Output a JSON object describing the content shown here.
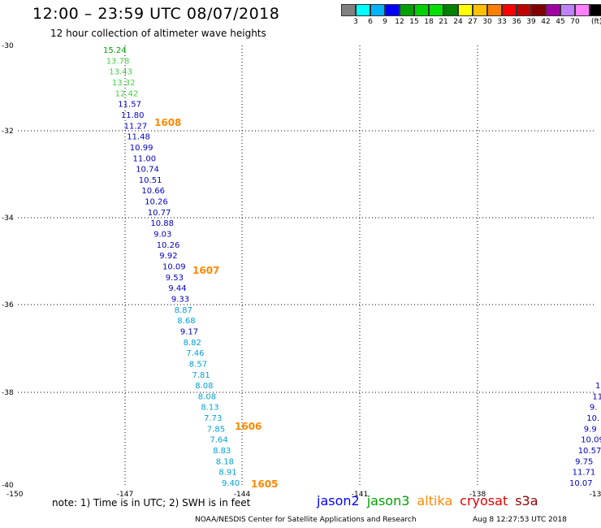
{
  "header": {
    "title": "12:00 – 23:59 UTC 08/07/2018",
    "subtitle": "12 hour collection of altimeter wave heights"
  },
  "scale": {
    "unit": "(ft)",
    "bins": [
      {
        "label": "",
        "color": "#808080"
      },
      {
        "label": "3",
        "color": "#00ffff"
      },
      {
        "label": "6",
        "color": "#00b4ff"
      },
      {
        "label": "9",
        "color": "#0000ff"
      },
      {
        "label": "12",
        "color": "#00a000"
      },
      {
        "label": "15",
        "color": "#00d000"
      },
      {
        "label": "18",
        "color": "#00e000"
      },
      {
        "label": "21",
        "color": "#008000"
      },
      {
        "label": "24",
        "color": "#ffff00"
      },
      {
        "label": "27",
        "color": "#ffc000"
      },
      {
        "label": "30",
        "color": "#ff8000"
      },
      {
        "label": "33",
        "color": "#ff0000"
      },
      {
        "label": "36",
        "color": "#c00000"
      },
      {
        "label": "39",
        "color": "#800000"
      },
      {
        "label": "42",
        "color": "#a000a0"
      },
      {
        "label": "45",
        "color": "#c080ff"
      },
      {
        "label": "70",
        "color": "#ff80ff"
      },
      {
        "label": "",
        "color": "#000000"
      }
    ]
  },
  "axes": {
    "lon_ticks": [
      "-150",
      "-147",
      "-144",
      "-141",
      "-138",
      "-13"
    ],
    "lat_ticks": [
      "-30",
      "-32",
      "-34",
      "-36",
      "-38",
      "-40"
    ]
  },
  "colors": {
    "dark_blue": "#0000c8",
    "light_blue": "#00a0dc",
    "light_green": "#40d040",
    "green": "#00a000",
    "orange": "#ff8800"
  },
  "track_west": [
    {
      "v": "15.24",
      "c": "green"
    },
    {
      "v": "13.78",
      "c": "light_green"
    },
    {
      "v": "13.43",
      "c": "light_green"
    },
    {
      "v": "13.32",
      "c": "light_green"
    },
    {
      "v": "12.42",
      "c": "light_green"
    },
    {
      "v": "11.57",
      "c": "dark_blue"
    },
    {
      "v": "11.80",
      "c": "dark_blue"
    },
    {
      "v": "11.27",
      "c": "dark_blue"
    },
    {
      "v": "11.48",
      "c": "dark_blue"
    },
    {
      "v": "10.99",
      "c": "dark_blue"
    },
    {
      "v": "11.00",
      "c": "dark_blue"
    },
    {
      "v": "10.74",
      "c": "dark_blue"
    },
    {
      "v": "10.51",
      "c": "dark_blue"
    },
    {
      "v": "10.66",
      "c": "dark_blue"
    },
    {
      "v": "10.26",
      "c": "dark_blue"
    },
    {
      "v": "10.77",
      "c": "dark_blue"
    },
    {
      "v": "10.88",
      "c": "dark_blue"
    },
    {
      "v": "9.03",
      "c": "dark_blue"
    },
    {
      "v": "10.26",
      "c": "dark_blue"
    },
    {
      "v": "9.92",
      "c": "dark_blue"
    },
    {
      "v": "10.09",
      "c": "dark_blue"
    },
    {
      "v": "9.53",
      "c": "dark_blue"
    },
    {
      "v": "9.44",
      "c": "dark_blue"
    },
    {
      "v": "9.33",
      "c": "dark_blue"
    },
    {
      "v": "8.87",
      "c": "light_blue"
    },
    {
      "v": "8.68",
      "c": "light_blue"
    },
    {
      "v": "9.17",
      "c": "dark_blue"
    },
    {
      "v": "8.82",
      "c": "light_blue"
    },
    {
      "v": "7.46",
      "c": "light_blue"
    },
    {
      "v": "8.57",
      "c": "light_blue"
    },
    {
      "v": "7.81",
      "c": "light_blue"
    },
    {
      "v": "8.08",
      "c": "light_blue"
    },
    {
      "v": "8.08",
      "c": "light_blue"
    },
    {
      "v": "8.13",
      "c": "light_blue"
    },
    {
      "v": "7.73",
      "c": "light_blue"
    },
    {
      "v": "7.85",
      "c": "light_blue"
    },
    {
      "v": "7.64",
      "c": "light_blue"
    },
    {
      "v": "8.83",
      "c": "light_blue"
    },
    {
      "v": "8.18",
      "c": "light_blue"
    },
    {
      "v": "8.91",
      "c": "light_blue"
    },
    {
      "v": "9.40",
      "c": "light_blue"
    }
  ],
  "track_east": [
    {
      "v": "1",
      "c": "dark_blue"
    },
    {
      "v": "11",
      "c": "dark_blue"
    },
    {
      "v": "9.",
      "c": "dark_blue"
    },
    {
      "v": "10.",
      "c": "dark_blue"
    },
    {
      "v": "9.9",
      "c": "dark_blue"
    },
    {
      "v": "10.09",
      "c": "dark_blue"
    },
    {
      "v": "10.57",
      "c": "dark_blue"
    },
    {
      "v": "9.75",
      "c": "dark_blue"
    },
    {
      "v": "11.71",
      "c": "dark_blue"
    },
    {
      "v": "10.07",
      "c": "dark_blue"
    }
  ],
  "time_labels": [
    "1608",
    "1607",
    "1606",
    "1605"
  ],
  "footer": {
    "note": "note:  1) Time is in UTC; 2) SWH is in feet",
    "satellites": [
      {
        "name": "jason2",
        "color": "#0000ff"
      },
      {
        "name": "jason3",
        "color": "#00a000"
      },
      {
        "name": "altika",
        "color": "#ff8800"
      },
      {
        "name": "cryosat",
        "color": "#e00000"
      },
      {
        "name": "s3a",
        "color": "#900000"
      }
    ],
    "credit": "NOAA/NESDIS Center for Satellite Applications and Research",
    "timestamp": "Aug  8 12:27:53 UTC 2018"
  }
}
